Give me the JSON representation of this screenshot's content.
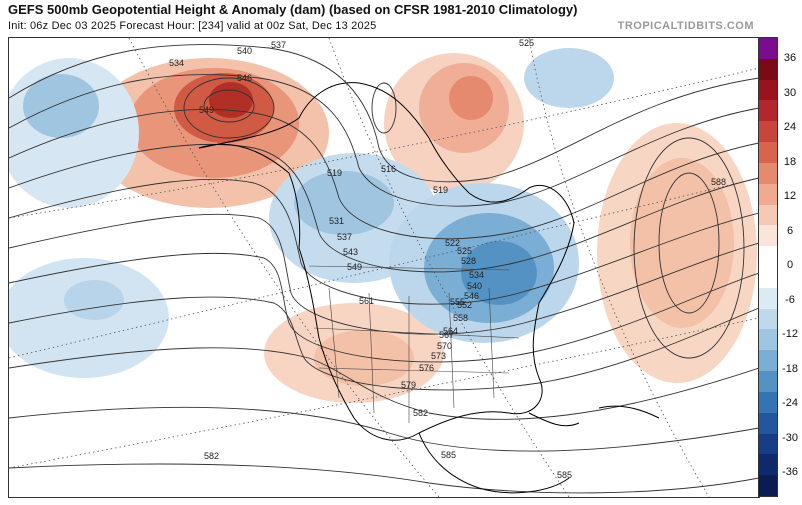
{
  "header": {
    "title": "GEFS 500mb Geopotential Height & Anomaly (dam) (based on CFSR 1981-2010 Climatology)",
    "subtitle": "Init: 06z Dec 03 2025   Forecast Hour: [234]   valid at 00z Sat, Dec 13 2025",
    "brand": "TROPICALTIDBITS.COM"
  },
  "map": {
    "height_contour_labels": [
      "537",
      "534",
      "540",
      "546",
      "549",
      "525",
      "519",
      "516",
      "519",
      "522",
      "531",
      "537",
      "543",
      "549",
      "525",
      "528",
      "534",
      "540",
      "546",
      "552",
      "555",
      "558",
      "561",
      "564",
      "567",
      "570",
      "573",
      "576",
      "579",
      "582",
      "585",
      "588",
      "585",
      "582"
    ]
  },
  "colorbar": {
    "labels": [
      "36",
      "30",
      "24",
      "18",
      "12",
      "6",
      "0",
      "-6",
      "-12",
      "-18",
      "-24",
      "-30",
      "-36"
    ],
    "colors": [
      "#7a0d8e",
      "#7a0a16",
      "#99121e",
      "#b3262d",
      "#c9443a",
      "#d8644e",
      "#e58a6e",
      "#efaa8f",
      "#f5c9b4",
      "#fbe5da",
      "#ffffff",
      "#ffffff",
      "#dceaf4",
      "#bfd9ea",
      "#9fc5e0",
      "#7aaed4",
      "#5592c4",
      "#3574b3",
      "#22569d",
      "#173d86",
      "#0f2a6c",
      "#0b1c55"
    ]
  }
}
